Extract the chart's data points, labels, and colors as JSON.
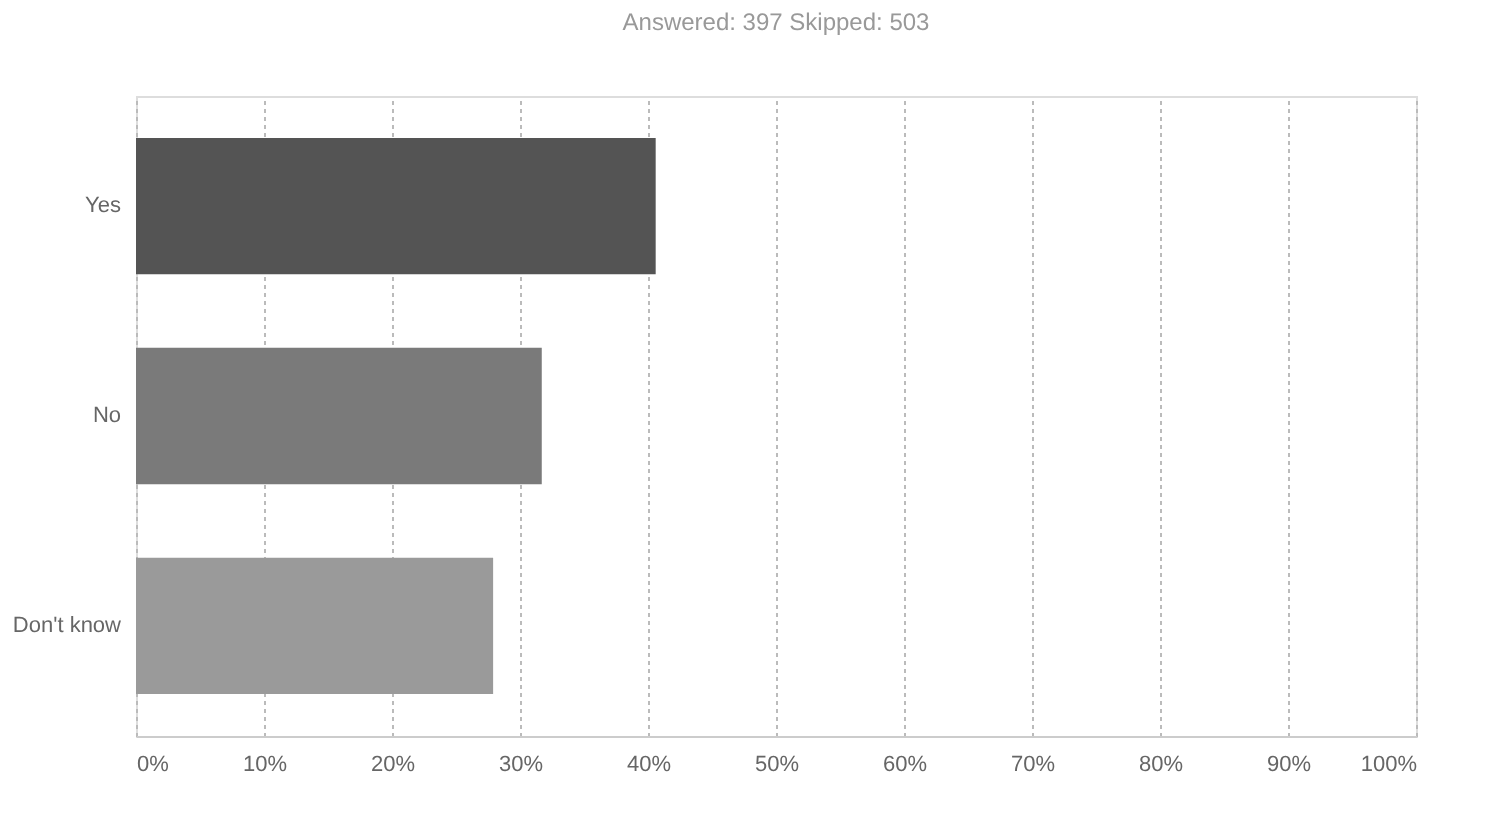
{
  "chart_data": {
    "type": "bar",
    "orientation": "horizontal",
    "title": "Answered: 397     Skipped: 503",
    "categories": [
      "Yes",
      "No",
      "Don't know"
    ],
    "values": [
      40.6,
      31.7,
      27.9
    ],
    "colors": [
      "#545454",
      "#7a7a7a",
      "#9a9a9a"
    ],
    "xlim": [
      0,
      100
    ],
    "xticks": [
      {
        "value": 0,
        "label": "0%"
      },
      {
        "value": 10,
        "label": "10%"
      },
      {
        "value": 20,
        "label": "20%"
      },
      {
        "value": 30,
        "label": "30%"
      },
      {
        "value": 40,
        "label": "40%"
      },
      {
        "value": 50,
        "label": "50%"
      },
      {
        "value": 60,
        "label": "60%"
      },
      {
        "value": 70,
        "label": "70%"
      },
      {
        "value": 80,
        "label": "80%"
      },
      {
        "value": 90,
        "label": "90%"
      },
      {
        "value": 100,
        "label": "100%"
      }
    ],
    "grid": "x"
  }
}
